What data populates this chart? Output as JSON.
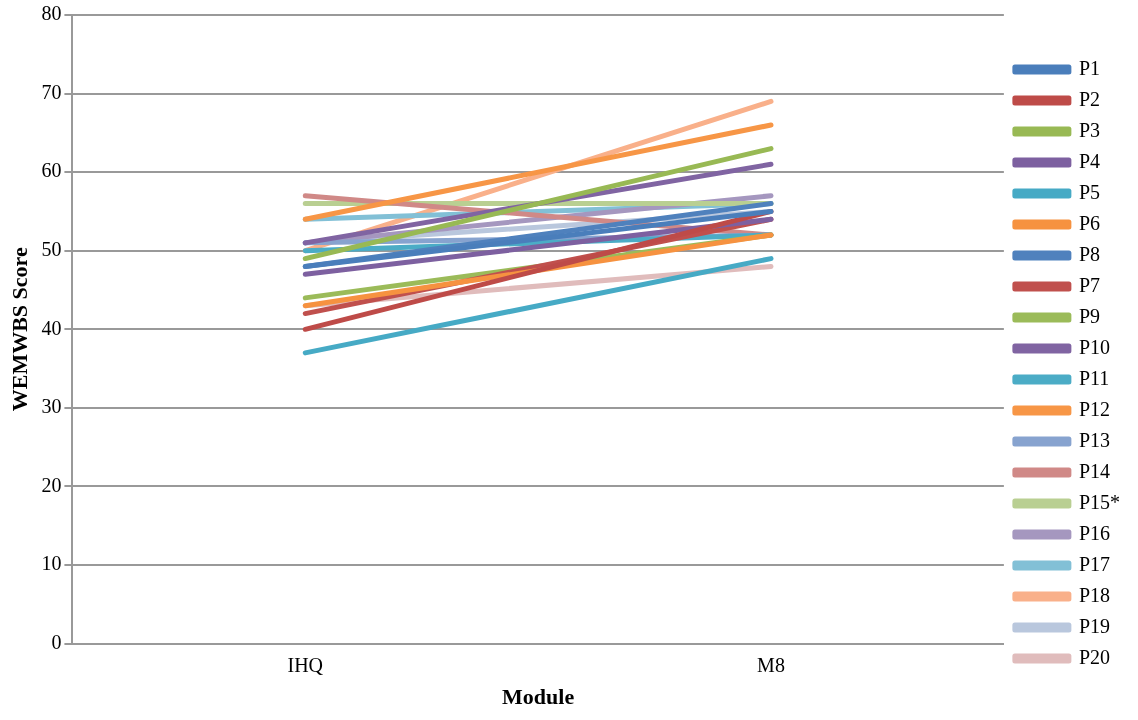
{
  "chart_data": {
    "type": "line",
    "xlabel": "Module",
    "ylabel": "WEMWBS Score",
    "categories": [
      "IHQ",
      "M8"
    ],
    "ylim": [
      0,
      80
    ],
    "yticks": [
      0,
      10,
      20,
      30,
      40,
      50,
      60,
      70,
      80
    ],
    "grid": "y",
    "legend": "right",
    "marker": "none",
    "line_style": "solid",
    "series": [
      {
        "name": "P1",
        "color": "#4a7ebb",
        "values": [
          48,
          55
        ]
      },
      {
        "name": "P2",
        "color": "#be4b48",
        "values": [
          40,
          55
        ]
      },
      {
        "name": "P3",
        "color": "#98b954",
        "values": [
          49,
          63
        ]
      },
      {
        "name": "P4",
        "color": "#7d60a0",
        "values": [
          47,
          54
        ]
      },
      {
        "name": "P5",
        "color": "#46aac5",
        "values": [
          37,
          49
        ]
      },
      {
        "name": "P6",
        "color": "#f69240",
        "values": [
          43,
          52
        ]
      },
      {
        "name": "P8",
        "color": "#4f81bd",
        "values": [
          48,
          56
        ]
      },
      {
        "name": "P7",
        "color": "#c0504d",
        "values": [
          42,
          54
        ]
      },
      {
        "name": "P9",
        "color": "#9bbb59",
        "values": [
          44,
          52
        ]
      },
      {
        "name": "P10",
        "color": "#8064a2",
        "values": [
          51,
          61
        ]
      },
      {
        "name": "P11",
        "color": "#4bacc6",
        "values": [
          50,
          52
        ]
      },
      {
        "name": "P12",
        "color": "#f79646",
        "values": [
          54,
          66
        ]
      },
      {
        "name": "P13",
        "color": "#87a3cf",
        "values": [
          51,
          52
        ]
      },
      {
        "name": "P14",
        "color": "#d08987",
        "values": [
          57,
          52
        ]
      },
      {
        "name": "P15*",
        "color": "#b9cf92",
        "values": [
          56,
          56
        ]
      },
      {
        "name": "P16",
        "color": "#a597bf",
        "values": [
          51,
          57
        ]
      },
      {
        "name": "P17",
        "color": "#82c0d6",
        "values": [
          54,
          56
        ]
      },
      {
        "name": "P18",
        "color": "#f9b08a",
        "values": [
          50,
          69
        ]
      },
      {
        "name": "P19",
        "color": "#b9c7dd",
        "values": [
          51,
          55
        ]
      },
      {
        "name": "P20",
        "color": "#e0bcbc",
        "values": [
          43,
          48
        ]
      }
    ]
  }
}
